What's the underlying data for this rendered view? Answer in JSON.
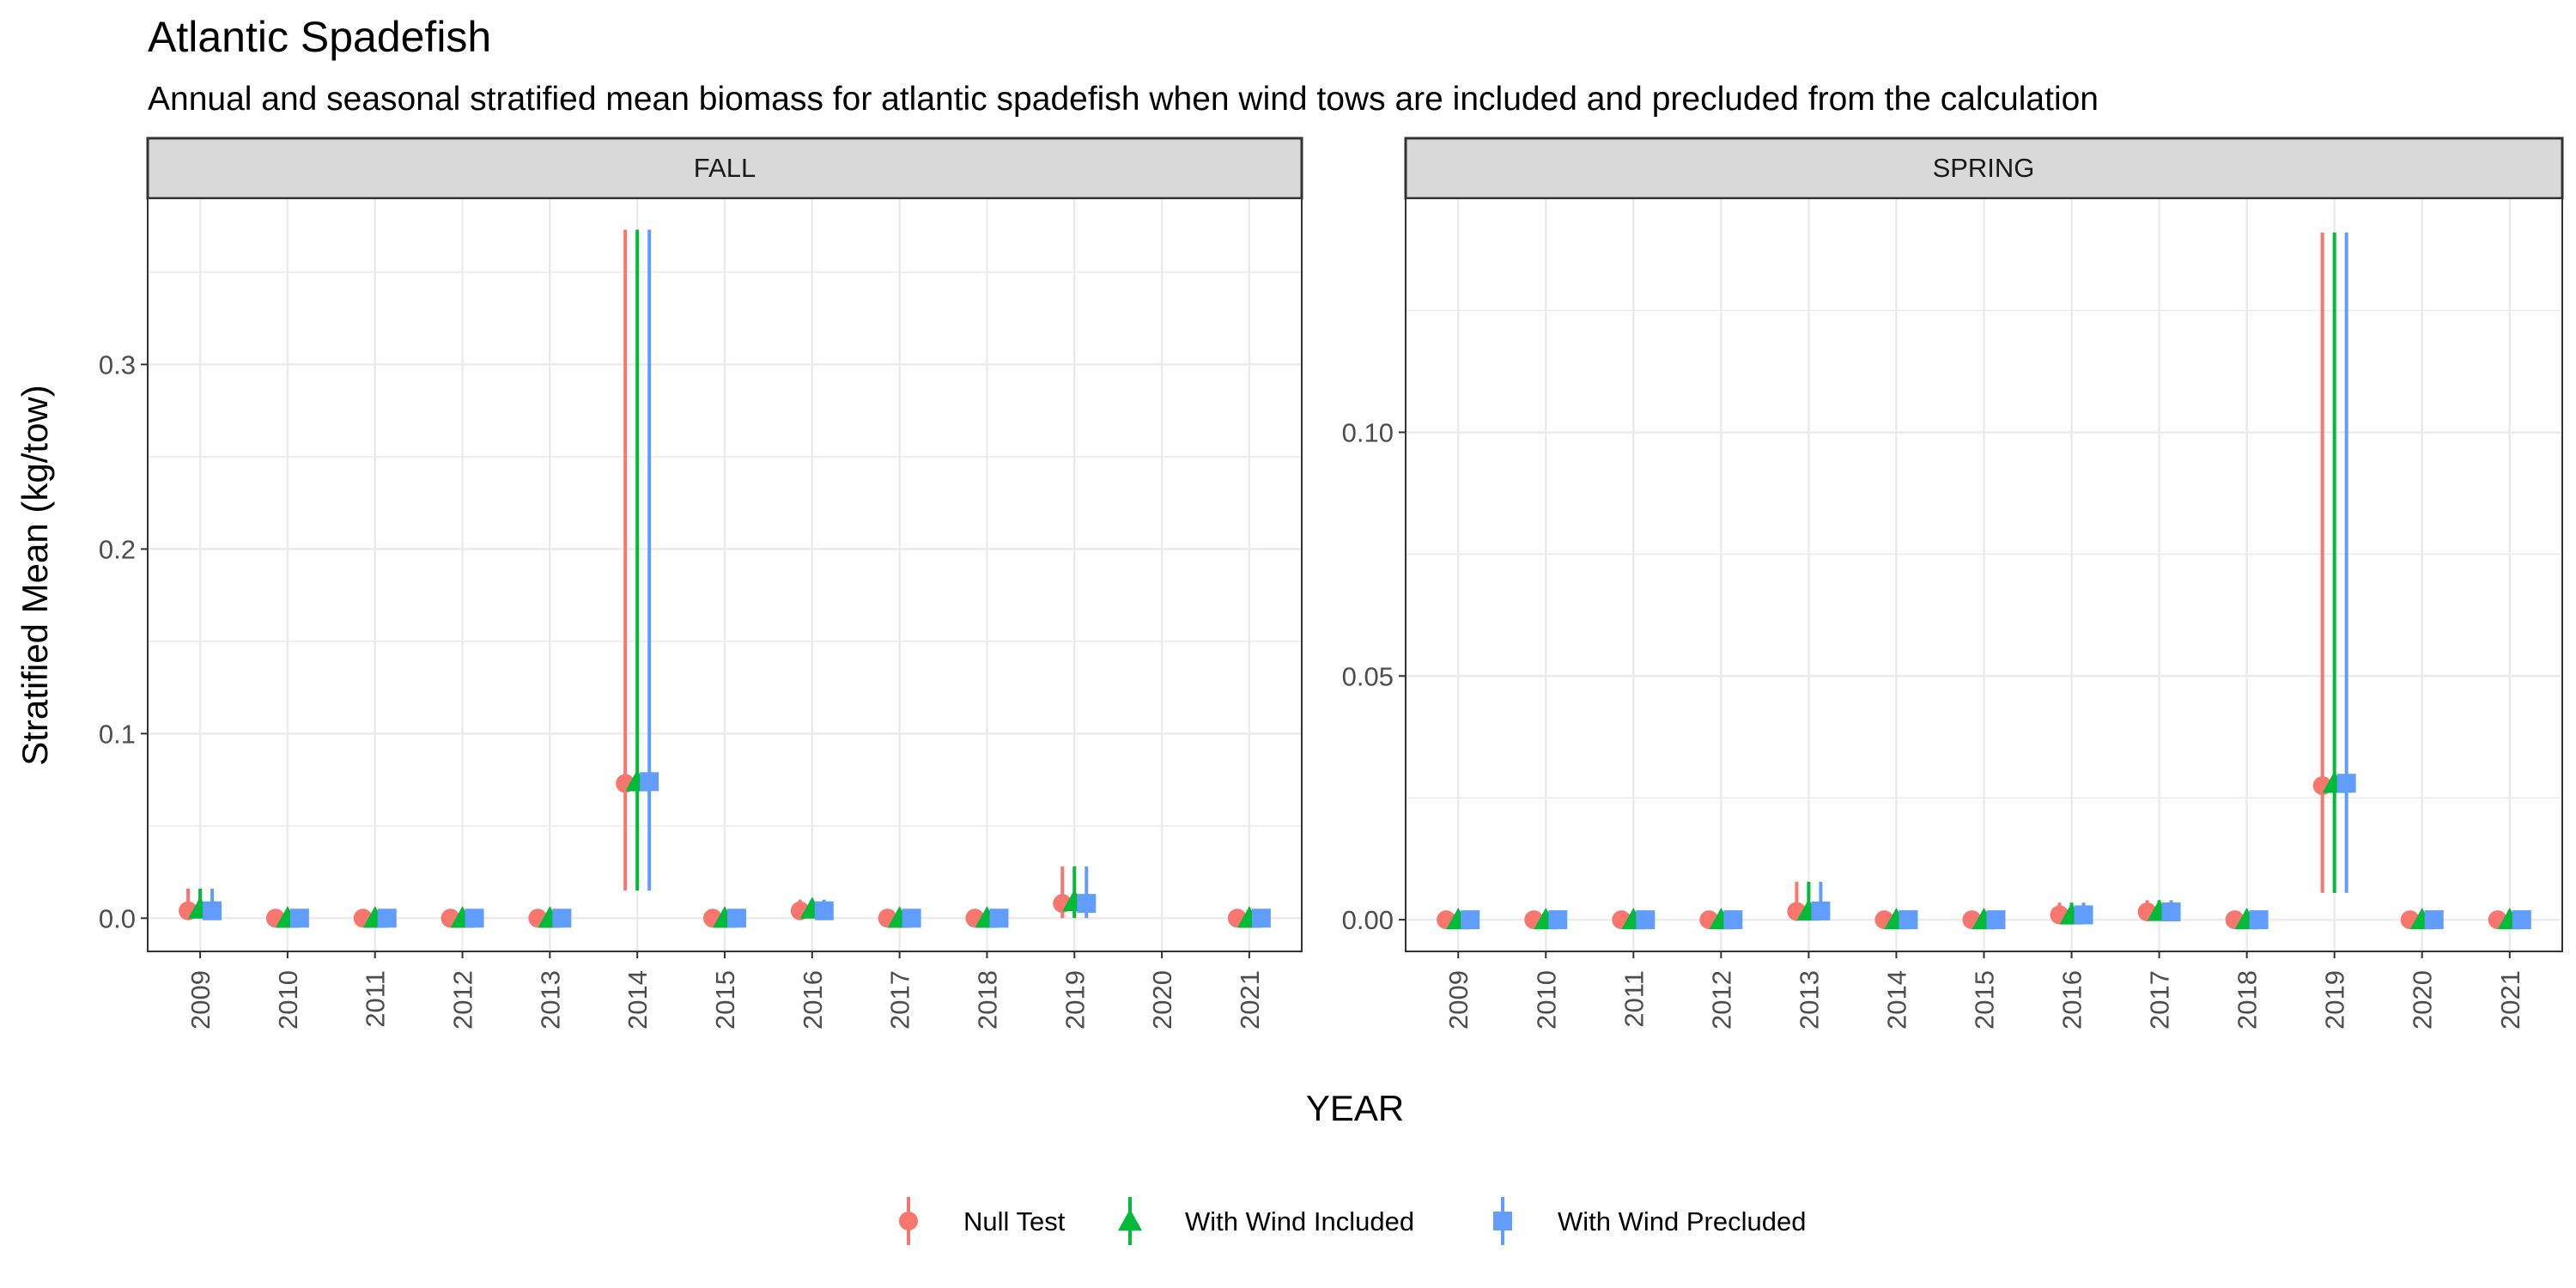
{
  "chart_data": {
    "type": "pointrange",
    "title": "Atlantic Spadefish",
    "subtitle": "Annual and seasonal stratified mean biomass for atlantic spadefish when wind tows are included and precluded from the calculation",
    "xlabel": "YEAR",
    "ylabel": "Stratified Mean (kg/tow)",
    "legend": {
      "position": "bottom",
      "entries": [
        {
          "name": "Null Test",
          "color": "#F8766D",
          "shape": "circle"
        },
        {
          "name": "With Wind Included",
          "color": "#00BA38",
          "shape": "triangle"
        },
        {
          "name": "With Wind Precluded",
          "color": "#619CFF",
          "shape": "square"
        }
      ]
    },
    "facets": [
      {
        "label": "FALL",
        "categories": [
          "2009",
          "2010",
          "2011",
          "2012",
          "2013",
          "2014",
          "2015",
          "2016",
          "2017",
          "2018",
          "2019",
          "2020",
          "2021"
        ],
        "ylim": [
          -0.018,
          0.39
        ],
        "ybreaks": [
          0.0,
          0.1,
          0.2,
          0.3
        ],
        "ytick_labels": [
          "0.0",
          "0.1",
          "0.2",
          "0.3"
        ],
        "series": [
          {
            "name": "Null Test",
            "values": [
              0.004,
              0.0,
              0.0,
              0.0,
              0.0,
              0.073,
              0.0,
              0.004,
              0.0,
              0.0,
              0.008,
              null,
              0.0
            ],
            "lower": [
              0.0,
              0.0,
              0.0,
              0.0,
              0.0,
              0.015,
              0.0,
              0.0,
              0.0,
              0.0,
              0.0,
              null,
              0.0
            ],
            "upper": [
              0.016,
              0.0,
              0.0,
              0.0,
              0.0,
              0.373,
              0.0,
              0.01,
              0.0,
              0.0,
              0.028,
              null,
              0.0
            ]
          },
          {
            "name": "With Wind Included",
            "values": [
              0.005,
              0.0,
              0.0,
              0.0,
              0.0,
              0.074,
              0.0,
              0.005,
              0.0,
              0.0,
              0.009,
              null,
              0.0
            ],
            "lower": [
              0.0,
              0.0,
              0.0,
              0.0,
              0.0,
              0.015,
              0.0,
              0.0,
              0.0,
              0.0,
              0.0,
              null,
              0.0
            ],
            "upper": [
              0.016,
              0.0,
              0.0,
              0.0,
              0.0,
              0.373,
              0.0,
              0.01,
              0.0,
              0.0,
              0.028,
              null,
              0.0
            ]
          },
          {
            "name": "With Wind Precluded",
            "values": [
              0.004,
              0.0,
              0.0,
              0.0,
              0.0,
              0.074,
              0.0,
              0.004,
              0.0,
              0.0,
              0.008,
              null,
              0.0
            ],
            "lower": [
              0.0,
              0.0,
              0.0,
              0.0,
              0.0,
              0.015,
              0.0,
              0.0,
              0.0,
              0.0,
              0.0,
              null,
              0.0
            ],
            "upper": [
              0.016,
              0.0,
              0.0,
              0.0,
              0.0,
              0.373,
              0.0,
              0.01,
              0.0,
              0.0,
              0.028,
              null,
              0.0
            ]
          }
        ]
      },
      {
        "label": "SPRING",
        "categories": [
          "2009",
          "2010",
          "2011",
          "2012",
          "2013",
          "2014",
          "2015",
          "2016",
          "2017",
          "2018",
          "2019",
          "2020",
          "2021"
        ],
        "ylim": [
          -0.0065,
          0.148
        ],
        "ybreaks": [
          0.0,
          0.05,
          0.1
        ],
        "ytick_labels": [
          "0.00",
          "0.05",
          "0.10"
        ],
        "series": [
          {
            "name": "Null Test",
            "values": [
              0.0,
              0.0,
              0.0,
              0.0,
              0.0017,
              0.0,
              0.0,
              0.001,
              0.0016,
              0.0,
              0.0275,
              0.0,
              0.0
            ],
            "lower": [
              0.0,
              0.0,
              0.0,
              0.0,
              0.0,
              0.0,
              0.0,
              0.0,
              0.0,
              0.0,
              0.0055,
              0.0,
              0.0
            ],
            "upper": [
              0.0,
              0.0,
              0.0,
              0.0,
              0.0078,
              0.0,
              0.0,
              0.0035,
              0.004,
              0.0,
              0.141,
              0.0,
              0.0
            ]
          },
          {
            "name": "With Wind Included",
            "values": [
              0.0,
              0.0,
              0.0,
              0.0,
              0.0018,
              0.0,
              0.0,
              0.001,
              0.0017,
              0.0,
              0.028,
              0.0,
              0.0
            ],
            "lower": [
              0.0,
              0.0,
              0.0,
              0.0,
              0.0,
              0.0,
              0.0,
              0.0,
              0.0,
              0.0,
              0.0055,
              0.0,
              0.0
            ],
            "upper": [
              0.0,
              0.0,
              0.0,
              0.0,
              0.0078,
              0.0,
              0.0,
              0.0035,
              0.004,
              0.0,
              0.141,
              0.0,
              0.0
            ]
          },
          {
            "name": "With Wind Precluded",
            "values": [
              0.0,
              0.0,
              0.0,
              0.0,
              0.0018,
              0.0,
              0.0,
              0.001,
              0.0016,
              0.0,
              0.028,
              0.0,
              0.0
            ],
            "lower": [
              0.0,
              0.0,
              0.0,
              0.0,
              0.0,
              0.0,
              0.0,
              0.0,
              0.0,
              0.0,
              0.0055,
              0.0,
              0.0
            ],
            "upper": [
              0.0,
              0.0,
              0.0,
              0.0,
              0.0078,
              0.0,
              0.0,
              0.0035,
              0.004,
              0.0,
              0.141,
              0.0,
              0.0
            ]
          }
        ]
      }
    ]
  }
}
